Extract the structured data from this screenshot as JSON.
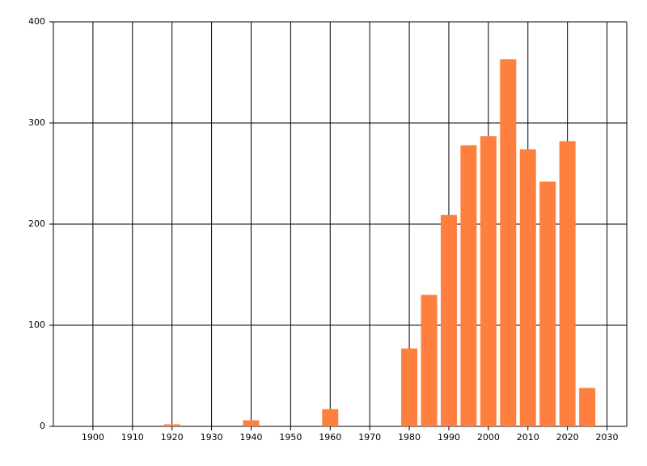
{
  "chart_data": {
    "type": "bar",
    "x": [
      1920,
      1940,
      1960,
      1980,
      1985,
      1990,
      1995,
      2000,
      2005,
      2010,
      2015,
      2020,
      2025
    ],
    "values": [
      2,
      6,
      17,
      77,
      130,
      209,
      278,
      287,
      363,
      274,
      242,
      282,
      38
    ],
    "color": "#ff7f3f",
    "xlim": [
      1890,
      2035
    ],
    "xticks": [
      1900,
      1910,
      1920,
      1930,
      1940,
      1950,
      1960,
      1970,
      1980,
      1990,
      2000,
      2010,
      2020,
      2030
    ],
    "ylim": [
      0,
      400
    ],
    "yticks": [
      0,
      100,
      200,
      300,
      400
    ],
    "grid": true
  }
}
